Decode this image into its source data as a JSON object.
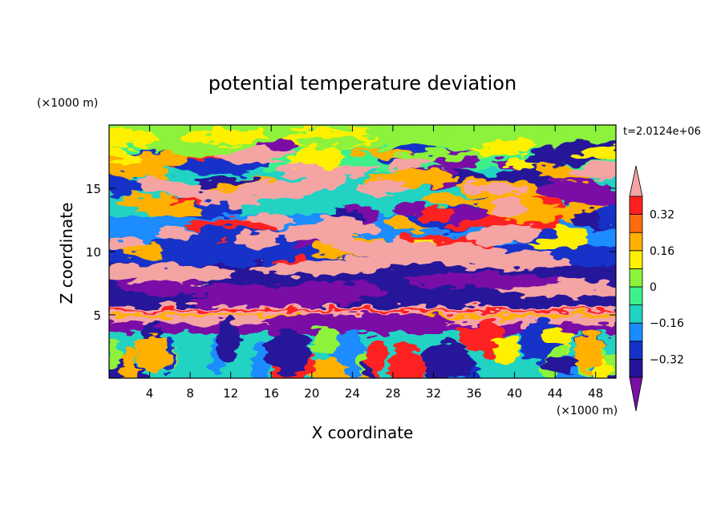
{
  "chart_data": {
    "type": "heatmap",
    "title": "potential temperature deviation",
    "xlabel": "X coordinate",
    "ylabel": "Z coordinate",
    "x_unit": "(×1000 m)",
    "y_unit": "(×1000 m)",
    "time_label": "t=2.0124e+06",
    "xlim": [
      0,
      50
    ],
    "ylim": [
      0,
      20
    ],
    "x_ticks": [
      "4",
      "8",
      "12",
      "16",
      "20",
      "24",
      "28",
      "32",
      "36",
      "40",
      "44",
      "48"
    ],
    "x_tick_values": [
      4,
      8,
      12,
      16,
      20,
      24,
      28,
      32,
      36,
      40,
      44,
      48
    ],
    "y_ticks": [
      "5",
      "10",
      "15"
    ],
    "y_tick_values": [
      5,
      10,
      15
    ],
    "colorbar": {
      "levels": [
        -0.4,
        -0.32,
        -0.24,
        -0.16,
        -0.08,
        0,
        0.08,
        0.16,
        0.24,
        0.32,
        0.4
      ],
      "labels": [
        "0.32",
        "0.16",
        "0",
        "−0.16",
        "−0.32"
      ],
      "label_values": [
        0.32,
        0.16,
        0,
        -0.16,
        -0.32
      ],
      "colors": [
        "#7a0fa6",
        "#25149a",
        "#1432c8",
        "#1a8cff",
        "#20d2c2",
        "#3cf08a",
        "#8cf23a",
        "#fff000",
        "#ffb000",
        "#ff6a10",
        "#ff2020",
        "#f5a4a4"
      ]
    },
    "grid": false,
    "legend": "colorbar-right"
  }
}
